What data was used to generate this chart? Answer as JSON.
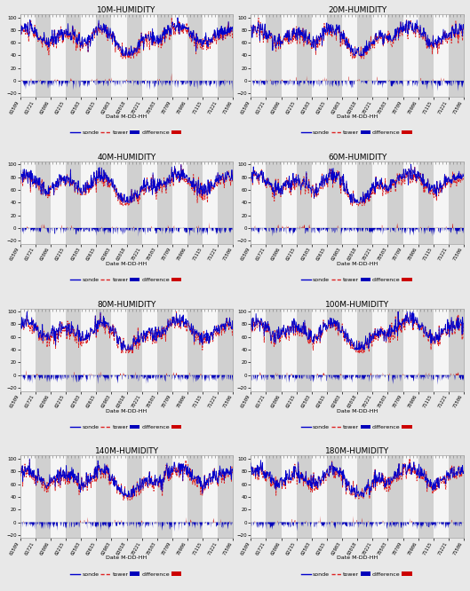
{
  "titles": [
    "10M-HUMIDITY",
    "20M-HUMIDITY",
    "40M-HUMIDITY",
    "60M-HUMIDITY",
    "80M-HUMIDITY",
    "100M-HUMIDITY",
    "140M-HUMIDITY",
    "180M-HUMIDITY"
  ],
  "xlabel": "Date M-DD-HH",
  "ylim_main": [
    -25,
    105
  ],
  "yticks": [
    -20,
    0,
    20,
    40,
    60,
    80,
    100
  ],
  "x_labels": [
    "61509",
    "61721",
    "62006",
    "62215",
    "62503",
    "62615",
    "62903",
    "63018",
    "70221",
    "70503",
    "70709",
    "70906",
    "71115",
    "71221",
    "71506"
  ],
  "n_points": 500,
  "background_color": "#e8e8e8",
  "stripe_white": "#f5f5f5",
  "stripe_gray": "#d0d0d0",
  "sonde_color": "#0000cc",
  "tower_color": "#dd2222",
  "diff_pos_color": "#cc0000",
  "diff_neg_color": "#0000bb",
  "legend_fontsize": 4.5,
  "title_fontsize": 6.5,
  "tick_fontsize": 4,
  "xlabel_fontsize": 4.5
}
